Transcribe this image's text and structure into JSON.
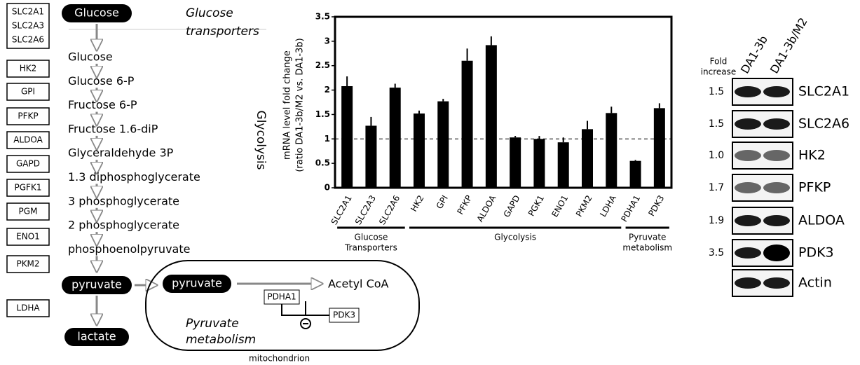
{
  "pathway": {
    "genes": [
      [
        "SLC2A1",
        "SLC2A3",
        "SLC2A6"
      ],
      [
        "HK2"
      ],
      [
        "GPI"
      ],
      [
        "PFKP"
      ],
      [
        "ALDOA"
      ],
      [
        "GAPD"
      ],
      [
        "PGFK1"
      ],
      [
        "PGM"
      ],
      [
        "ENO1"
      ],
      [
        "PKM2"
      ],
      [
        "LDHA"
      ]
    ],
    "start": "Glucose",
    "transporters_label": [
      "Glucose",
      "transporters"
    ],
    "metabolites": [
      "Glucose",
      "Glucose 6-P",
      "Fructose 6-P",
      "Fructose 1.6-diP",
      "Glyceraldehyde 3P",
      "1.3 diphosphoglycerate",
      "3 phosphoglycerate",
      "2 phosphoglycerate",
      "phosphoenolpyruvate"
    ],
    "glycolysis_label": "Glycolysis",
    "pyruvate": "pyruvate",
    "lactate": "lactate",
    "mito_pyruvate": "pyruvate",
    "acetyl_coa": "Acetyl CoA",
    "enzyme": "PDHA1",
    "kinase": "PDK3",
    "mito_label": [
      "Pyruvate",
      "metabolism"
    ],
    "compartment": "mitochondrion"
  },
  "chart_data": {
    "type": "bar",
    "ylabel": [
      "mRNA level fold change",
      "(ratio DA1-3b/M2 vs. DA1-3b)"
    ],
    "categories": [
      "SLC2A1",
      "SLC2A3",
      "SLC2A6",
      "HK2",
      "GPI",
      "PFKP",
      "ALDOA",
      "GAPD",
      "PGK1",
      "ENO1",
      "PKM2",
      "LDHA",
      "PDHA1",
      "PDK3"
    ],
    "values": [
      2.08,
      1.27,
      2.05,
      1.52,
      1.77,
      2.6,
      2.92,
      1.03,
      1.0,
      0.93,
      1.2,
      1.53,
      0.55,
      1.63
    ],
    "errors": [
      0.2,
      0.18,
      0.08,
      0.06,
      0.05,
      0.25,
      0.18,
      0.03,
      0.06,
      0.1,
      0.17,
      0.13,
      0.02,
      0.1
    ],
    "color": "#000000",
    "ylim": [
      0,
      3.5
    ],
    "yticks": [
      0,
      0.5,
      1,
      1.5,
      2,
      2.5,
      3,
      3.5
    ],
    "reference_line": 1,
    "groups": [
      {
        "label": [
          "Glucose",
          "Transporters"
        ],
        "size": 3
      },
      {
        "label": [
          "Glycolysis"
        ],
        "size": 9
      },
      {
        "label": [
          "Pyruvate",
          "metabolism"
        ],
        "size": 2
      }
    ]
  },
  "blot": {
    "fold_header": [
      "Fold",
      "increase"
    ],
    "lanes": [
      "DA1-3b",
      "DA1-3b/M2"
    ],
    "rows": [
      {
        "fold": "1.5",
        "protein": "SLC2A1"
      },
      {
        "fold": "1.5",
        "protein": "SLC2A6"
      },
      {
        "fold": "1.0",
        "protein": "HK2"
      },
      {
        "fold": "1.7",
        "protein": "PFKP"
      },
      {
        "fold": "1.9",
        "protein": "ALDOA"
      },
      {
        "fold": "3.5",
        "protein": "PDK3"
      },
      {
        "protein": "Actin"
      }
    ]
  }
}
